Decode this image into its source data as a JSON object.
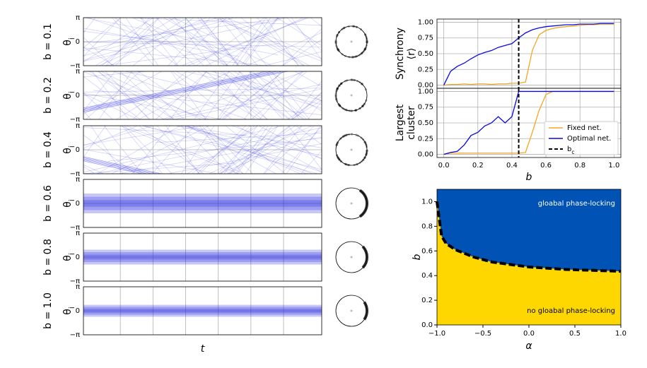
{
  "chart_data": [
    {
      "type": "raster",
      "label": {
        "value": 0.1,
        "label": "b = 0.1"
      },
      "ylabel": "θ_i",
      "ylim": [
        -3.14159,
        3.14159
      ],
      "yticks": [
        {
          "value": -3.14159,
          "label": "−π"
        },
        0,
        {
          "value": 3.14159,
          "label": "π"
        }
      ],
      "color": "#2020e0"
    },
    {
      "type": "raster",
      "label": {
        "value": 0.2,
        "label": "b = 0.2"
      },
      "ylabel": "θ_i",
      "ylim": [
        -3.14159,
        3.14159
      ],
      "yticks": [
        {
          "value": -3.14159,
          "label": "−π"
        },
        0,
        {
          "value": 3.14159,
          "label": "π"
        }
      ],
      "color": "#2020e0"
    },
    {
      "type": "raster",
      "label": {
        "value": 0.4,
        "label": "b = 0.4"
      },
      "ylabel": "θ_i",
      "ylim": [
        -3.14159,
        3.14159
      ],
      "yticks": [
        {
          "value": -3.14159,
          "label": "−π"
        },
        0,
        {
          "value": 3.14159,
          "label": "π"
        }
      ],
      "color": "#2020e0"
    },
    {
      "type": "raster",
      "label": {
        "value": 0.6,
        "label": "b = 0.6"
      },
      "ylabel": "θ_i",
      "ylim": [
        -3.14159,
        3.14159
      ],
      "yticks": [
        {
          "value": -3.14159,
          "label": "−π"
        },
        0,
        {
          "value": 3.14159,
          "label": "π"
        }
      ],
      "color": "#2020e0"
    },
    {
      "type": "raster",
      "label": {
        "value": 0.8,
        "label": "b = 0.8"
      },
      "ylabel": "θ_i",
      "ylim": [
        -3.14159,
        3.14159
      ],
      "yticks": [
        {
          "value": -3.14159,
          "label": "−π"
        },
        0,
        {
          "value": 3.14159,
          "label": "π"
        }
      ],
      "color": "#2020e0"
    },
    {
      "type": "raster",
      "label": {
        "value": 1.0,
        "label": "b = 1.0"
      },
      "ylabel": "θ_i",
      "ylim": [
        -3.14159,
        3.14159
      ],
      "yticks": [
        {
          "value": -3.14159,
          "label": "−π"
        },
        0,
        {
          "value": 3.14159,
          "label": "π"
        }
      ],
      "color": "#2020e0",
      "xlabel": "t"
    },
    {
      "type": "line",
      "ylabel": [
        "Synchrony",
        "⟨r⟩"
      ],
      "xlim": [
        -0.04,
        1.04
      ],
      "ylim": [
        -0.05,
        1.05
      ],
      "xticks": [
        0,
        0.2,
        0.4,
        0.6,
        0.8,
        1
      ],
      "yticks": [
        {
          "value": 0,
          "label": "0.00"
        },
        {
          "value": 0.25,
          "label": "0.25"
        },
        {
          "value": 0.5,
          "label": "0.50"
        },
        {
          "value": 0.75,
          "label": "0.75"
        },
        {
          "value": 1,
          "label": "1.00"
        }
      ],
      "grid": true,
      "vline": 0.44,
      "x": [
        0,
        0.04,
        0.08,
        0.12,
        0.16,
        0.2,
        0.24,
        0.28,
        0.32,
        0.36,
        0.4,
        0.44,
        0.48,
        0.52,
        0.56,
        0.6,
        0.64,
        0.68,
        0.72,
        0.76,
        0.8,
        0.84,
        0.88,
        0.92,
        0.96,
        1.0
      ],
      "series": [
        {
          "name": "Fixed net.",
          "color": "#f5a623",
          "values": [
            0.0,
            0.01,
            0.01,
            0.02,
            0.01,
            0.02,
            0.02,
            0.01,
            0.02,
            0.02,
            0.03,
            0.03,
            0.05,
            0.55,
            0.8,
            0.87,
            0.9,
            0.92,
            0.93,
            0.94,
            0.95,
            0.96,
            0.96,
            0.97,
            0.97,
            0.97
          ]
        },
        {
          "name": "Optimal net.",
          "color": "#0a0ae0",
          "values": [
            0.0,
            0.22,
            0.3,
            0.35,
            0.42,
            0.48,
            0.52,
            0.55,
            0.6,
            0.63,
            0.66,
            0.75,
            0.83,
            0.88,
            0.91,
            0.93,
            0.94,
            0.95,
            0.96,
            0.96,
            0.97,
            0.97,
            0.97,
            0.98,
            0.98,
            0.98
          ]
        }
      ]
    },
    {
      "type": "line",
      "ylabel": [
        "Largest",
        "cluster"
      ],
      "xlabel": "b",
      "xlim": [
        -0.04,
        1.04
      ],
      "ylim": [
        -0.05,
        1.05
      ],
      "xticks": [
        {
          "value": 0,
          "label": "0.0"
        },
        {
          "value": 0.2,
          "label": "0.2"
        },
        {
          "value": 0.4,
          "label": "0.4"
        },
        {
          "value": 0.6,
          "label": "0.6"
        },
        {
          "value": 0.8,
          "label": "0.8"
        },
        {
          "value": 1,
          "label": "1.0"
        }
      ],
      "yticks": [
        {
          "value": 0,
          "label": "0.00"
        },
        {
          "value": 0.25,
          "label": "0.25"
        },
        {
          "value": 0.5,
          "label": "0.50"
        },
        {
          "value": 0.75,
          "label": "0.75"
        },
        {
          "value": 1,
          "label": "1.00"
        }
      ],
      "grid": true,
      "vline": 0.44,
      "vline_label": "b_c",
      "legend": "lower right",
      "x": [
        0,
        0.04,
        0.08,
        0.12,
        0.16,
        0.2,
        0.24,
        0.28,
        0.32,
        0.36,
        0.4,
        0.44,
        0.48,
        0.52,
        0.56,
        0.6,
        0.64,
        0.68,
        0.72,
        0.76,
        0.8,
        0.84,
        0.88,
        0.92,
        0.96,
        1.0
      ],
      "series": [
        {
          "name": "Fixed net.",
          "color": "#f5a623",
          "values": [
            0.0,
            0.02,
            0.02,
            0.02,
            0.02,
            0.02,
            0.02,
            0.02,
            0.02,
            0.02,
            0.02,
            0.02,
            0.03,
            0.35,
            0.7,
            0.95,
            1.0,
            1.0,
            1.0,
            1.0,
            1.0,
            1.0,
            1.0,
            1.0,
            1.0,
            1.0
          ]
        },
        {
          "name": "Optimal net.",
          "color": "#0a0ae0",
          "values": [
            0.0,
            0.03,
            0.05,
            0.15,
            0.3,
            0.35,
            0.45,
            0.5,
            0.6,
            0.5,
            0.6,
            1.0,
            1.0,
            1.0,
            1.0,
            1.0,
            1.0,
            1.0,
            1.0,
            1.0,
            1.0,
            1.0,
            1.0,
            1.0,
            1.0,
            1.0
          ]
        }
      ]
    },
    {
      "type": "phase",
      "xlabel": "α",
      "ylabel": "b",
      "xlim": [
        -1,
        1
      ],
      "ylim": [
        0,
        1.1
      ],
      "xticks": [
        {
          "value": -1,
          "label": "−1.0"
        },
        {
          "value": -0.5,
          "label": "−0.5"
        },
        {
          "value": 0,
          "label": "0.0"
        },
        {
          "value": 0.5,
          "label": "0.5"
        },
        {
          "value": 1,
          "label": "1.0"
        }
      ],
      "yticks": [
        {
          "value": 0,
          "label": "0.0"
        },
        {
          "value": 0.2,
          "label": "0.2"
        },
        {
          "value": 0.4,
          "label": "0.4"
        },
        {
          "value": 0.6,
          "label": "0.6"
        },
        {
          "value": 0.8,
          "label": "0.8"
        },
        {
          "value": 1,
          "label": "1.0"
        }
      ],
      "x": [
        -1,
        -0.95,
        -0.9,
        -0.8,
        -0.6,
        -0.4,
        -0.2,
        0,
        0.2,
        0.4,
        0.6,
        0.8,
        1
      ],
      "values": [
        1.0,
        0.72,
        0.66,
        0.61,
        0.55,
        0.51,
        0.49,
        0.47,
        0.46,
        0.45,
        0.445,
        0.44,
        0.435
      ],
      "above_color": "#0052b4",
      "below_color": "#ffd700",
      "annotations": [
        "gloabal phase-locking",
        "no gloabal phase-locking"
      ]
    }
  ]
}
